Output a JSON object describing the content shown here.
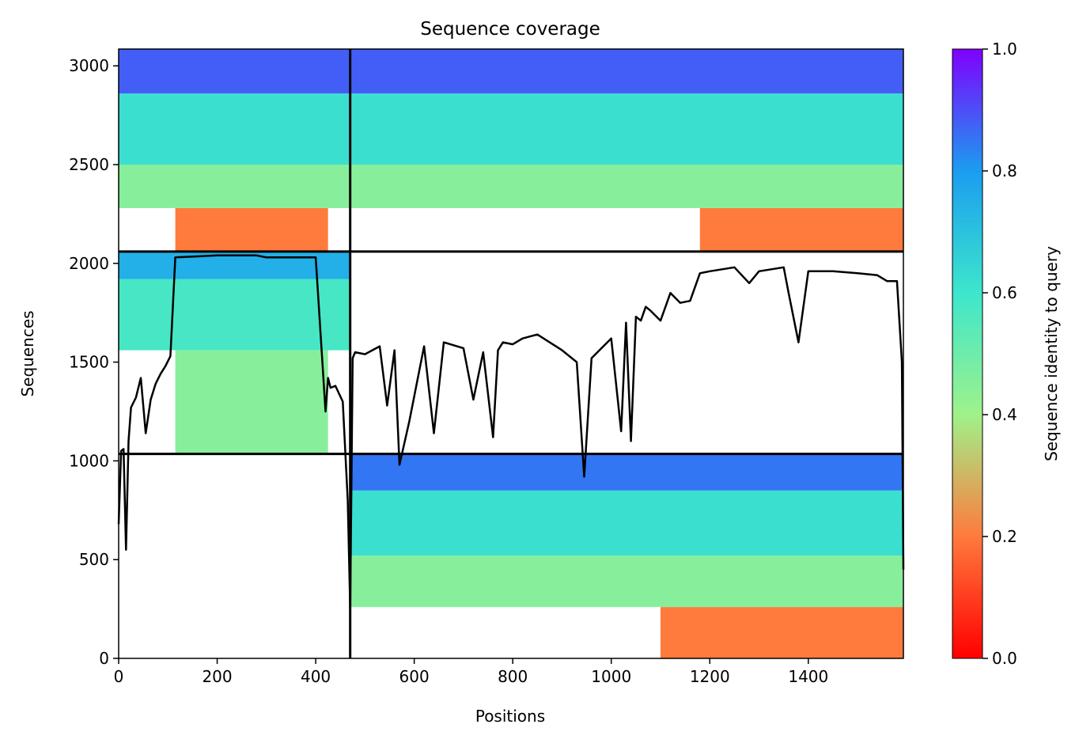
{
  "chart_data": {
    "type": "heatmap",
    "title": "Sequence coverage",
    "xlabel": "Positions",
    "ylabel": "Sequences",
    "xlim": [
      0,
      1593
    ],
    "ylim": [
      0,
      3085
    ],
    "x_ticks": [
      0,
      200,
      400,
      600,
      800,
      1000,
      1200,
      1400
    ],
    "y_ticks": [
      0,
      500,
      1000,
      1500,
      2000,
      2500,
      3000
    ],
    "colorbar": {
      "label": "Sequence identity to query",
      "range": [
        0.0,
        1.0
      ],
      "ticks": [
        "0.0",
        "0.2",
        "0.4",
        "0.6",
        "0.8",
        "1.0"
      ],
      "colormap": "rainbow_r"
    },
    "domain_boundaries": {
      "x": 470,
      "y": [
        1035,
        2060
      ]
    },
    "blocks": [
      {
        "x_range": [
          0,
          470
        ],
        "y_range": [
          2060,
          3085
        ],
        "layers": [
          {
            "y0": 2060,
            "y1": 2280,
            "x0": 115,
            "x1": 425,
            "identity": 0.2
          },
          {
            "y0": 2280,
            "y1": 2500,
            "x0": 0,
            "x1": 470,
            "identity": 0.45
          },
          {
            "y0": 2500,
            "y1": 2860,
            "x0": 0,
            "x1": 470,
            "identity": 0.62
          },
          {
            "y0": 2860,
            "y1": 3085,
            "x0": 0,
            "x1": 470,
            "identity": 0.88
          }
        ]
      },
      {
        "x_range": [
          470,
          1593
        ],
        "y_range": [
          2060,
          3085
        ],
        "layers": [
          {
            "y0": 2060,
            "y1": 2280,
            "x0": 1180,
            "x1": 1593,
            "identity": 0.2
          },
          {
            "y0": 2280,
            "y1": 2500,
            "x0": 470,
            "x1": 1593,
            "identity": 0.45
          },
          {
            "y0": 2500,
            "y1": 2860,
            "x0": 470,
            "x1": 1593,
            "identity": 0.62
          },
          {
            "y0": 2860,
            "y1": 3085,
            "x0": 470,
            "x1": 1593,
            "identity": 0.88
          }
        ]
      },
      {
        "x_range": [
          0,
          470
        ],
        "y_range": [
          1035,
          2060
        ],
        "layers": [
          {
            "y0": 1035,
            "y1": 1560,
            "x0": 115,
            "x1": 425,
            "identity": 0.45
          },
          {
            "y0": 1560,
            "y1": 1920,
            "x0": 0,
            "x1": 470,
            "identity": 0.58
          },
          {
            "y0": 1920,
            "y1": 2060,
            "x0": 0,
            "x1": 470,
            "identity": 0.75
          }
        ]
      },
      {
        "x_range": [
          470,
          1593
        ],
        "y_range": [
          0,
          1035
        ],
        "layers": [
          {
            "y0": 0,
            "y1": 260,
            "x0": 1100,
            "x1": 1593,
            "identity": 0.2
          },
          {
            "y0": 260,
            "y1": 520,
            "x0": 470,
            "x1": 1593,
            "identity": 0.45
          },
          {
            "y0": 520,
            "y1": 850,
            "x0": 470,
            "x1": 1593,
            "identity": 0.62
          },
          {
            "y0": 850,
            "y1": 1035,
            "x0": 470,
            "x1": 1593,
            "identity": 0.85
          }
        ]
      }
    ],
    "coverage_line": {
      "x": [
        0,
        5,
        10,
        15,
        20,
        25,
        35,
        45,
        55,
        65,
        75,
        85,
        95,
        105,
        115,
        200,
        280,
        300,
        400,
        420,
        425,
        430,
        440,
        455,
        465,
        470,
        475,
        480,
        500,
        530,
        545,
        560,
        570,
        590,
        620,
        640,
        660,
        700,
        720,
        740,
        760,
        770,
        780,
        800,
        820,
        850,
        900,
        930,
        945,
        960,
        1000,
        1020,
        1030,
        1040,
        1050,
        1060,
        1070,
        1080,
        1100,
        1120,
        1140,
        1160,
        1180,
        1200,
        1250,
        1280,
        1300,
        1350,
        1360,
        1380,
        1400,
        1450,
        1500,
        1540,
        1560,
        1580,
        1590,
        1593
      ],
      "y": [
        680,
        1050,
        1060,
        550,
        1100,
        1270,
        1320,
        1420,
        1140,
        1310,
        1390,
        1440,
        1480,
        1530,
        2030,
        2040,
        2040,
        2030,
        2030,
        1250,
        1420,
        1370,
        1380,
        1300,
        800,
        250,
        1520,
        1550,
        1540,
        1580,
        1280,
        1560,
        980,
        1200,
        1580,
        1140,
        1600,
        1570,
        1310,
        1550,
        1120,
        1560,
        1600,
        1590,
        1620,
        1640,
        1560,
        1500,
        920,
        1520,
        1620,
        1150,
        1700,
        1100,
        1730,
        1710,
        1780,
        1760,
        1710,
        1850,
        1800,
        1810,
        1950,
        1960,
        1980,
        1900,
        1960,
        1980,
        1850,
        1600,
        1960,
        1960,
        1950,
        1940,
        1910,
        1910,
        1500,
        450
      ]
    }
  }
}
